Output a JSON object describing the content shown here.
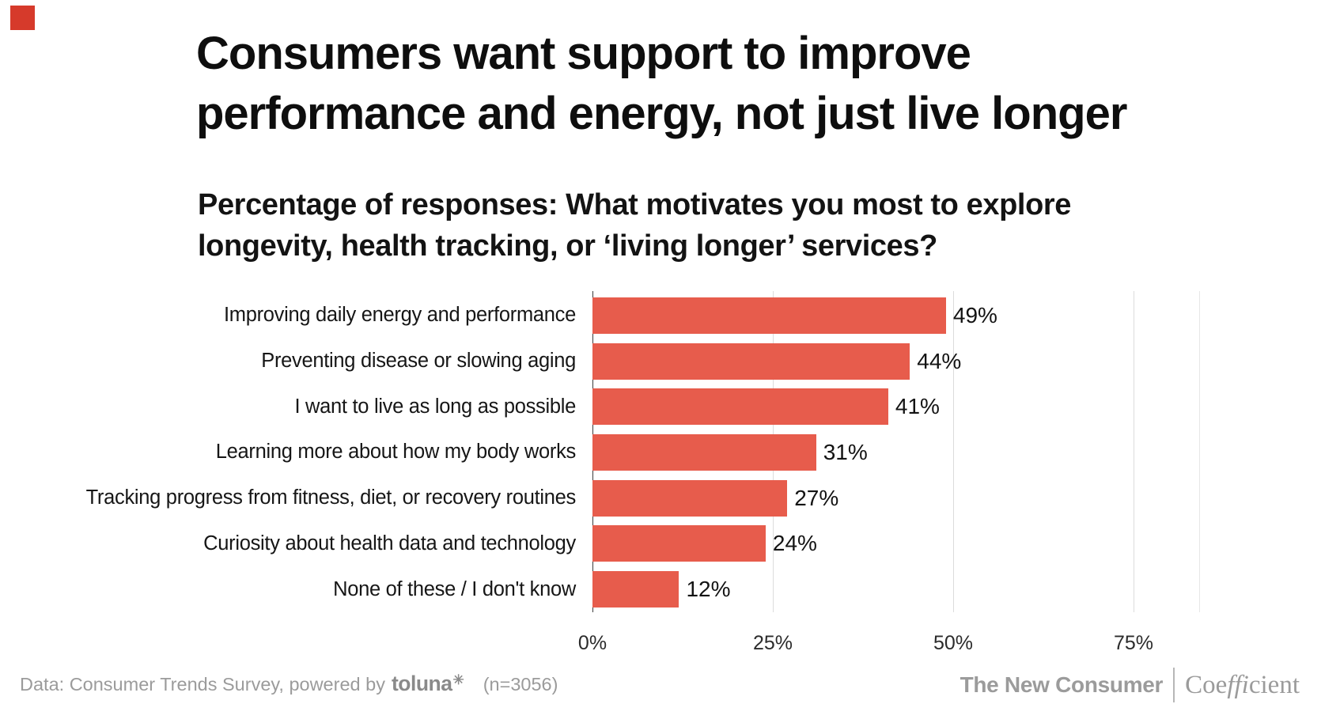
{
  "brand": {
    "logo_color": "#d63a2b",
    "bar_color": "#e75c4c"
  },
  "header": {
    "title_line1": "Consumers want support to improve",
    "title_line2": "performance and energy, not just live longer",
    "subtitle_line1": "Percentage of responses: What motivates you most to explore",
    "subtitle_line2": "longevity, health tracking, or ‘living longer’ services?"
  },
  "chart_data": {
    "type": "bar",
    "orientation": "horizontal",
    "title": "Consumers want support to improve performance and energy, not just live longer",
    "subtitle": "Percentage of responses: What motivates you most to explore longevity, health tracking, or ‘living longer’ services?",
    "categories": [
      "Improving daily energy and performance",
      "Preventing disease or slowing aging",
      "I want to live as long as possible",
      "Learning more about how my body works",
      "Tracking progress from fitness, diet, or recovery routines",
      "Curiosity about health data and technology",
      "None of these / I don't know"
    ],
    "values": [
      49,
      44,
      41,
      31,
      27,
      24,
      12
    ],
    "value_labels": [
      "49%",
      "44%",
      "41%",
      "31%",
      "27%",
      "24%",
      "12%"
    ],
    "x_ticks": [
      {
        "label": "0%",
        "value": 0
      },
      {
        "label": "25%",
        "value": 25
      },
      {
        "label": "50%",
        "value": 50
      },
      {
        "label": "75%",
        "value": 75
      }
    ],
    "xlim": [
      0,
      84
    ],
    "xlabel": "",
    "ylabel": "",
    "unit": "%",
    "grid": true,
    "legend": "none",
    "bar_color": "#e75c4c"
  },
  "footer": {
    "source_prefix": "Data: Consumer Trends Survey, powered by",
    "toluna_logo": "toluna",
    "toluna_star": "✳",
    "sample_size": "(n=3056)",
    "publication": "The New Consumer",
    "partner_prefix": "Coe",
    "partner_ligature": "ffi",
    "partner_suffix": "cient"
  }
}
